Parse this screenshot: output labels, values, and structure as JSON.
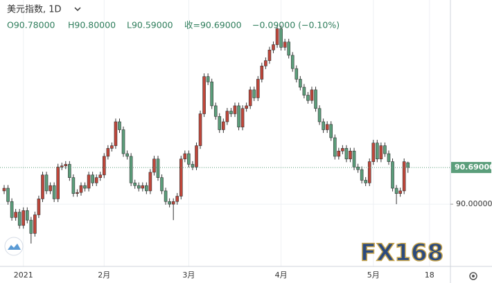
{
  "chart_data": {
    "type": "candlestick",
    "title": "美元指数, 1D",
    "ohlc_labels": [
      "O90.78000",
      "H90.80000",
      "L90.59000",
      "收=90.69000",
      "−0.09000 (−0.10%)"
    ],
    "watermark": "FX168",
    "up_color": "#c0463a",
    "down_color": "#5b9e7b",
    "last_price": {
      "value": 90.69,
      "label": "90.69000"
    },
    "xlim": [
      -1.08,
      116.04
    ],
    "xticks": [
      {
        "value": 5,
        "label": "2021"
      },
      {
        "value": 26,
        "label": "2月"
      },
      {
        "value": 48,
        "label": "3月"
      },
      {
        "value": 72,
        "label": "4月"
      },
      {
        "value": 96,
        "label": "5月"
      },
      {
        "value": 110.6,
        "label": "18"
      }
    ],
    "ylim": [
      88.83,
      93.84
    ],
    "yticks": [
      {
        "value": 90,
        "label": "90.00000"
      }
    ],
    "grid": true,
    "open": [
      90.25,
      90.3,
      90.05,
      89.75,
      89.85,
      89.6,
      89.88,
      89.7,
      89.45,
      89.8,
      90.1,
      90.55,
      90.25,
      90.35,
      90.1,
      90.7,
      90.72,
      90.75,
      90.5,
      90.2,
      90.22,
      90.35,
      90.3,
      90.55,
      90.4,
      90.5,
      90.55,
      90.9,
      91.05,
      91.1,
      91.55,
      91.4,
      90.95,
      90.9,
      90.4,
      90.35,
      90.3,
      90.35,
      90.25,
      90.6,
      90.85,
      90.5,
      90.25,
      90.05,
      90.0,
      90.05,
      90.15,
      90.85,
      90.95,
      90.75,
      90.7,
      91.1,
      91.7,
      92.4,
      92.3,
      91.85,
      91.65,
      91.4,
      91.55,
      91.75,
      91.7,
      91.85,
      91.45,
      91.8,
      91.85,
      92.15,
      92.0,
      92.35,
      92.6,
      92.7,
      92.9,
      93.0,
      93.3,
      92.95,
      93.05,
      92.8,
      92.55,
      92.35,
      92.2,
      92.05,
      91.95,
      92.15,
      91.8,
      91.55,
      91.4,
      91.5,
      91.25,
      90.9,
      91.0,
      91.05,
      90.85,
      91.0,
      90.7,
      90.65,
      90.45,
      90.4,
      90.8,
      91.15,
      90.85,
      91.1,
      90.95,
      90.8,
      90.3,
      90.2,
      90.25,
      90.78
    ],
    "high": [
      90.36,
      90.36,
      90.11,
      89.91,
      89.91,
      89.94,
      89.94,
      89.76,
      89.86,
      90.16,
      90.61,
      90.61,
      90.41,
      90.41,
      90.76,
      90.78,
      90.81,
      90.81,
      90.56,
      90.28,
      90.41,
      90.41,
      90.61,
      90.61,
      90.56,
      90.61,
      90.96,
      91.11,
      91.16,
      91.61,
      91.61,
      91.46,
      91.01,
      90.96,
      90.46,
      90.41,
      90.41,
      90.41,
      90.66,
      90.91,
      90.91,
      90.56,
      90.31,
      90.11,
      90.11,
      90.21,
      90.91,
      91.01,
      91.01,
      90.81,
      91.16,
      91.76,
      92.46,
      92.46,
      92.36,
      91.91,
      91.71,
      91.61,
      91.81,
      91.81,
      91.91,
      91.91,
      91.86,
      91.91,
      92.21,
      92.21,
      92.41,
      92.66,
      92.76,
      92.96,
      93.06,
      93.36,
      93.36,
      93.11,
      93.11,
      92.86,
      92.61,
      92.41,
      92.26,
      92.11,
      92.21,
      92.21,
      91.86,
      91.61,
      91.56,
      91.56,
      91.31,
      91.06,
      91.11,
      91.11,
      91.06,
      91.06,
      90.76,
      90.71,
      90.51,
      90.86,
      91.21,
      91.21,
      91.16,
      91.16,
      91.01,
      90.86,
      90.36,
      90.31,
      90.86,
      90.8
    ],
    "low": [
      90.19,
      89.99,
      89.69,
      89.69,
      89.54,
      89.54,
      89.64,
      89.26,
      89.39,
      89.74,
      90.04,
      90.19,
      90.19,
      90.04,
      90.04,
      90.64,
      90.66,
      90.44,
      90.14,
      90.14,
      90.16,
      90.24,
      90.24,
      90.34,
      90.34,
      90.44,
      90.49,
      90.84,
      90.99,
      91.04,
      91.34,
      90.89,
      90.84,
      90.34,
      90.29,
      90.24,
      90.24,
      90.19,
      90.19,
      90.54,
      90.44,
      90.19,
      89.99,
      89.94,
      89.7,
      89.99,
      90.09,
      90.79,
      90.69,
      90.64,
      90.64,
      91.04,
      91.64,
      92.24,
      91.79,
      91.59,
      91.34,
      91.34,
      91.49,
      91.64,
      91.64,
      91.39,
      91.39,
      91.74,
      91.79,
      91.94,
      91.94,
      92.29,
      92.54,
      92.64,
      92.84,
      92.94,
      92.89,
      92.89,
      92.74,
      92.49,
      92.29,
      92.14,
      91.99,
      91.89,
      91.89,
      91.74,
      91.49,
      91.34,
      91.34,
      91.19,
      90.84,
      90.84,
      90.94,
      90.79,
      90.79,
      90.64,
      90.59,
      90.39,
      90.34,
      90.34,
      90.74,
      90.79,
      90.79,
      90.89,
      90.74,
      90.24,
      90.0,
      90.14,
      90.19,
      90.59
    ],
    "close": [
      90.3,
      90.05,
      89.75,
      89.85,
      89.6,
      89.88,
      89.7,
      89.45,
      89.8,
      90.1,
      90.55,
      90.25,
      90.35,
      90.1,
      90.7,
      90.72,
      90.75,
      90.5,
      90.2,
      90.22,
      90.35,
      90.3,
      90.55,
      90.4,
      90.5,
      90.55,
      90.9,
      91.05,
      91.1,
      91.55,
      91.4,
      90.95,
      90.9,
      90.4,
      90.35,
      90.3,
      90.35,
      90.25,
      90.6,
      90.85,
      90.5,
      90.25,
      90.05,
      90.0,
      90.05,
      90.15,
      90.85,
      90.95,
      90.75,
      90.7,
      91.1,
      91.7,
      92.4,
      92.3,
      91.85,
      91.65,
      91.4,
      91.55,
      91.75,
      91.7,
      91.85,
      91.45,
      91.8,
      91.85,
      92.15,
      92.0,
      92.35,
      92.6,
      92.7,
      92.9,
      93.0,
      93.3,
      92.95,
      93.05,
      92.8,
      92.55,
      92.35,
      92.2,
      92.05,
      91.95,
      92.15,
      91.8,
      91.55,
      91.4,
      91.5,
      91.25,
      90.9,
      91.0,
      91.05,
      90.85,
      91.0,
      90.7,
      90.65,
      90.45,
      90.4,
      90.8,
      91.15,
      90.85,
      91.1,
      90.95,
      90.8,
      90.3,
      90.2,
      90.25,
      90.8,
      90.69
    ]
  }
}
